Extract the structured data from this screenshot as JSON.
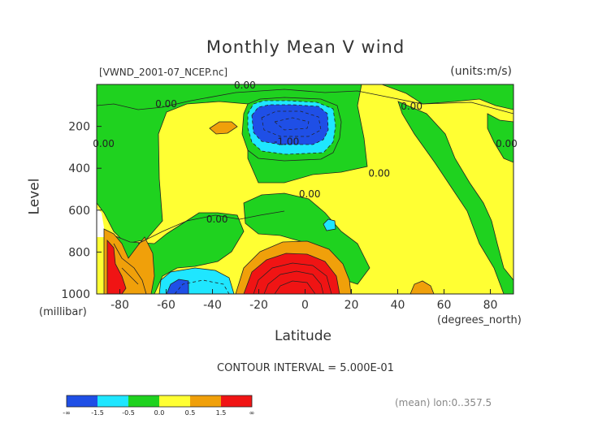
{
  "title": "Monthly Mean V wind",
  "file_label": "[VWND_2001-07_NCEP.nc]",
  "units_label": "(units:m/s)",
  "ylabel": "Level",
  "ylabel_unit": "(millibar)",
  "xlabel": "Latitude",
  "xlabel_unit": "(degrees_north)",
  "contour_interval": "CONTOUR INTERVAL = 5.000E-01",
  "footer": "(mean) lon:0..357.5",
  "chart_data": {
    "type": "heatmap",
    "x_range": [
      -90,
      90
    ],
    "y_range": [
      1000,
      0
    ],
    "x_ticks": [
      "-80",
      "-60",
      "-40",
      "-20",
      "0",
      "20",
      "40",
      "60",
      "80"
    ],
    "x_tick_values": [
      -80,
      -60,
      -40,
      -20,
      0,
      20,
      40,
      60,
      80
    ],
    "y_ticks": [
      "200",
      "400",
      "600",
      "800",
      "1000"
    ],
    "y_tick_values": [
      200,
      400,
      600,
      800,
      1000
    ],
    "colorbar": {
      "labels": [
        "-∞",
        "-1.5",
        "-0.5",
        "0.0",
        "0.5",
        "1.5",
        "∞"
      ],
      "colors": [
        "#1f4fe6",
        "#1fe6ff",
        "#1fd21f",
        "#ffff33",
        "#f0a00a",
        "#f01414"
      ]
    },
    "contour_labels": [
      {
        "text": "0.00",
        "lat": -26,
        "lev": 0
      },
      {
        "text": "0.00",
        "lat": -60,
        "lev": 90
      },
      {
        "text": "0.00",
        "lat": -87,
        "lev": 280
      },
      {
        "text": "-1.00",
        "lat": -8,
        "lev": 270
      },
      {
        "text": "0.00",
        "lat": 46,
        "lev": 100
      },
      {
        "text": "0.00",
        "lat": 87,
        "lev": 280
      },
      {
        "text": "0.00",
        "lat": 32,
        "lev": 420
      },
      {
        "text": "0.00",
        "lat": 2,
        "lev": 520
      },
      {
        "text": "0.00",
        "lat": -38,
        "lev": 640
      }
    ],
    "regions": [
      {
        "value": "0.0",
        "lat": -60,
        "lev": 500
      },
      {
        "value": "-1.0",
        "lat": -8,
        "lev": 180
      },
      {
        "value": "1.5",
        "lat": -10,
        "lev": 950
      },
      {
        "value": "1.5",
        "lat": -85,
        "lev": 850
      },
      {
        "value": "-0.5",
        "lat": -52,
        "lev": 940
      },
      {
        "value": "0.5",
        "lat": 50,
        "lev": 970
      }
    ]
  }
}
